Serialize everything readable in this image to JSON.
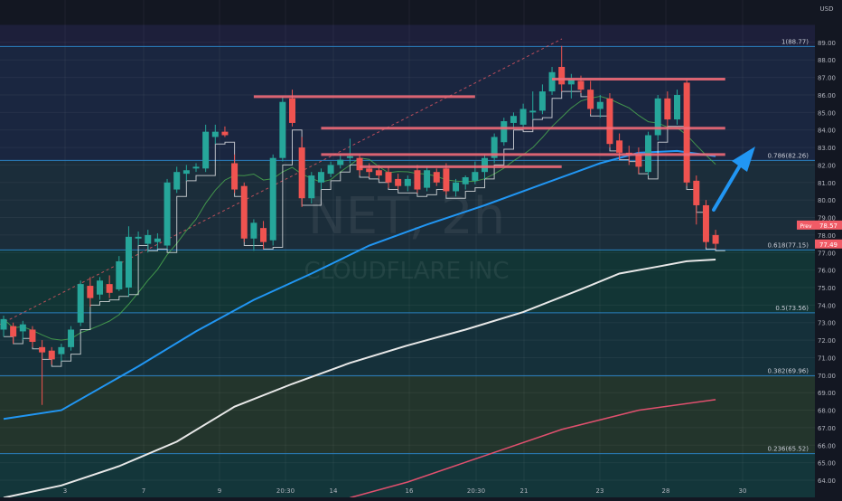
{
  "watermark": {
    "symbol": "NET, 2h",
    "name": "CLOUDFLARE INC"
  },
  "currency": "USD",
  "price_scale": {
    "min": 63,
    "max": 90,
    "labels": [
      64,
      65,
      66,
      67,
      68,
      69,
      70,
      71,
      72,
      73,
      74,
      75,
      76,
      77,
      78,
      79,
      80,
      81,
      82,
      83,
      84,
      85,
      86,
      87,
      88,
      89
    ]
  },
  "time_axis": {
    "labels": [
      "3",
      "7",
      "9",
      "20:30",
      "14",
      "16",
      "20:30",
      "21",
      "23",
      "28",
      "30"
    ]
  },
  "price_tags": {
    "prev": {
      "label": "Prev",
      "value": "78.57"
    },
    "last": {
      "value": "77.49"
    }
  },
  "fib_levels": [
    {
      "ratio": "1",
      "value": "88.77",
      "label": "1(88.77)"
    },
    {
      "ratio": "0.786",
      "value": "82.26",
      "label": "0.786(82.26)"
    },
    {
      "ratio": "0.618",
      "value": "77.15",
      "label": "0.618(77.15)"
    },
    {
      "ratio": "0.5",
      "value": "73.56",
      "label": "0.5(73.56)"
    },
    {
      "ratio": "0.382",
      "value": "69.96",
      "label": "0.382(69.96)"
    },
    {
      "ratio": "0.236",
      "value": "65.52",
      "label": "0.236(65.52)"
    }
  ],
  "colors": {
    "background": "#131722",
    "up": "#26a69a",
    "down": "#ef5350",
    "ma_blue": "#2196f3",
    "ma_white": "#e8e8e8",
    "ma_red": "#e0506e",
    "ma_green": "#4caf50",
    "resistance": "#f06a78",
    "fib_line": "#2a7fbf",
    "arrow": "#2196f3",
    "tag_red": "#f05b66"
  },
  "chart_data": {
    "type": "candlestick",
    "title": "",
    "xlabel": "",
    "ylabel": "",
    "ylim": [
      63,
      90
    ],
    "grid": true,
    "candles": [
      {
        "o": 72.6,
        "h": 73.4,
        "l": 72.2,
        "c": 73.2
      },
      {
        "o": 72.8,
        "h": 73.0,
        "l": 71.8,
        "c": 72.2
      },
      {
        "o": 72.5,
        "h": 73.1,
        "l": 72.0,
        "c": 72.9
      },
      {
        "o": 72.6,
        "h": 72.8,
        "l": 71.6,
        "c": 71.9
      },
      {
        "o": 71.6,
        "h": 72.0,
        "l": 68.3,
        "c": 71.3
      },
      {
        "o": 71.4,
        "h": 71.6,
        "l": 70.6,
        "c": 70.9
      },
      {
        "o": 71.2,
        "h": 71.8,
        "l": 70.8,
        "c": 71.6
      },
      {
        "o": 71.6,
        "h": 72.8,
        "l": 71.4,
        "c": 72.6
      },
      {
        "o": 73.0,
        "h": 75.4,
        "l": 72.8,
        "c": 75.2
      },
      {
        "o": 75.1,
        "h": 75.6,
        "l": 73.9,
        "c": 74.4
      },
      {
        "o": 74.6,
        "h": 75.6,
        "l": 74.3,
        "c": 75.4
      },
      {
        "o": 75.2,
        "h": 75.7,
        "l": 74.4,
        "c": 74.7
      },
      {
        "o": 74.9,
        "h": 76.8,
        "l": 74.8,
        "c": 76.5
      },
      {
        "o": 75.0,
        "h": 78.5,
        "l": 74.5,
        "c": 77.9
      },
      {
        "o": 77.8,
        "h": 78.2,
        "l": 77.4,
        "c": 77.9
      },
      {
        "o": 77.5,
        "h": 78.3,
        "l": 77.0,
        "c": 78.0
      },
      {
        "o": 77.6,
        "h": 78.1,
        "l": 77.2,
        "c": 77.8
      },
      {
        "o": 77.4,
        "h": 81.2,
        "l": 77.2,
        "c": 81.0
      },
      {
        "o": 80.6,
        "h": 81.9,
        "l": 80.4,
        "c": 81.6
      },
      {
        "o": 81.5,
        "h": 82.0,
        "l": 81.1,
        "c": 81.7
      },
      {
        "o": 81.8,
        "h": 82.1,
        "l": 81.6,
        "c": 81.9
      },
      {
        "o": 81.8,
        "h": 84.3,
        "l": 81.6,
        "c": 83.9
      },
      {
        "o": 83.6,
        "h": 84.3,
        "l": 83.2,
        "c": 83.9
      },
      {
        "o": 83.9,
        "h": 84.2,
        "l": 83.6,
        "c": 83.7
      },
      {
        "o": 82.1,
        "h": 82.6,
        "l": 80.4,
        "c": 80.6
      },
      {
        "o": 80.8,
        "h": 81.0,
        "l": 77.6,
        "c": 77.8
      },
      {
        "o": 77.8,
        "h": 78.9,
        "l": 77.1,
        "c": 78.7
      },
      {
        "o": 78.4,
        "h": 78.8,
        "l": 77.2,
        "c": 77.6
      },
      {
        "o": 77.7,
        "h": 82.6,
        "l": 77.4,
        "c": 82.4
      },
      {
        "o": 82.4,
        "h": 85.9,
        "l": 82.2,
        "c": 85.6
      },
      {
        "o": 85.8,
        "h": 86.3,
        "l": 84.2,
        "c": 84.4
      },
      {
        "o": 83.0,
        "h": 83.6,
        "l": 79.6,
        "c": 80.1
      },
      {
        "o": 80.1,
        "h": 81.6,
        "l": 79.8,
        "c": 81.4
      },
      {
        "o": 81.0,
        "h": 81.8,
        "l": 80.6,
        "c": 81.6
      },
      {
        "o": 81.5,
        "h": 82.2,
        "l": 81.3,
        "c": 82.0
      },
      {
        "o": 82.0,
        "h": 82.6,
        "l": 81.8,
        "c": 82.3
      },
      {
        "o": 82.4,
        "h": 83.5,
        "l": 82.1,
        "c": 82.5
      },
      {
        "o": 82.4,
        "h": 82.6,
        "l": 81.4,
        "c": 81.7
      },
      {
        "o": 81.8,
        "h": 82.1,
        "l": 81.3,
        "c": 81.6
      },
      {
        "o": 81.7,
        "h": 82.0,
        "l": 81.2,
        "c": 81.4
      },
      {
        "o": 81.6,
        "h": 81.9,
        "l": 80.7,
        "c": 81.0
      },
      {
        "o": 81.2,
        "h": 81.5,
        "l": 80.6,
        "c": 80.8
      },
      {
        "o": 80.8,
        "h": 81.4,
        "l": 80.5,
        "c": 81.2
      },
      {
        "o": 81.7,
        "h": 82.0,
        "l": 80.4,
        "c": 80.6
      },
      {
        "o": 80.7,
        "h": 81.9,
        "l": 80.5,
        "c": 81.7
      },
      {
        "o": 81.6,
        "h": 81.8,
        "l": 80.8,
        "c": 81.0
      },
      {
        "o": 81.8,
        "h": 82.1,
        "l": 80.3,
        "c": 80.5
      },
      {
        "o": 80.5,
        "h": 81.2,
        "l": 80.2,
        "c": 81.0
      },
      {
        "o": 80.9,
        "h": 81.4,
        "l": 80.6,
        "c": 81.3
      },
      {
        "o": 81.1,
        "h": 82.2,
        "l": 80.9,
        "c": 81.6
      },
      {
        "o": 81.6,
        "h": 82.6,
        "l": 81.2,
        "c": 82.4
      },
      {
        "o": 82.4,
        "h": 83.8,
        "l": 82.1,
        "c": 83.6
      },
      {
        "o": 83.3,
        "h": 84.7,
        "l": 83.1,
        "c": 84.5
      },
      {
        "o": 84.4,
        "h": 85.0,
        "l": 84.0,
        "c": 84.8
      },
      {
        "o": 84.3,
        "h": 85.5,
        "l": 84.1,
        "c": 85.2
      },
      {
        "o": 85.0,
        "h": 86.2,
        "l": 84.6,
        "c": 85.1
      },
      {
        "o": 85.1,
        "h": 86.6,
        "l": 84.9,
        "c": 86.2
      },
      {
        "o": 86.2,
        "h": 87.6,
        "l": 86.0,
        "c": 87.3
      },
      {
        "o": 87.6,
        "h": 88.8,
        "l": 86.2,
        "c": 86.6
      },
      {
        "o": 86.6,
        "h": 87.2,
        "l": 85.8,
        "c": 86.9
      },
      {
        "o": 86.8,
        "h": 87.1,
        "l": 86.1,
        "c": 86.3
      },
      {
        "o": 86.3,
        "h": 86.8,
        "l": 84.9,
        "c": 85.2
      },
      {
        "o": 85.2,
        "h": 86.0,
        "l": 84.7,
        "c": 85.6
      },
      {
        "o": 85.8,
        "h": 86.1,
        "l": 83.0,
        "c": 83.2
      },
      {
        "o": 83.4,
        "h": 83.8,
        "l": 82.3,
        "c": 82.7
      },
      {
        "o": 82.7,
        "h": 83.1,
        "l": 82.0,
        "c": 82.6
      },
      {
        "o": 82.6,
        "h": 83.0,
        "l": 81.5,
        "c": 81.9
      },
      {
        "o": 81.6,
        "h": 83.9,
        "l": 81.4,
        "c": 83.7
      },
      {
        "o": 83.7,
        "h": 86.0,
        "l": 83.4,
        "c": 85.8
      },
      {
        "o": 85.8,
        "h": 86.2,
        "l": 84.2,
        "c": 84.6
      },
      {
        "o": 84.6,
        "h": 86.3,
        "l": 84.3,
        "c": 86.0
      },
      {
        "o": 86.7,
        "h": 86.9,
        "l": 80.8,
        "c": 81.0
      },
      {
        "o": 81.1,
        "h": 81.4,
        "l": 78.6,
        "c": 79.7
      },
      {
        "o": 79.7,
        "h": 80.0,
        "l": 77.3,
        "c": 77.6
      },
      {
        "o": 78.0,
        "h": 78.3,
        "l": 77.2,
        "c": 77.5
      }
    ],
    "moving_averages": [
      {
        "color": "ma_blue",
        "points": [
          [
            0,
            67.5
          ],
          [
            6,
            68.0
          ],
          [
            14,
            70.5
          ],
          [
            20,
            72.5
          ],
          [
            26,
            74.3
          ],
          [
            32,
            75.8
          ],
          [
            38,
            77.4
          ],
          [
            44,
            78.6
          ],
          [
            50,
            79.7
          ],
          [
            56,
            80.9
          ],
          [
            62,
            82.1
          ],
          [
            66,
            82.7
          ],
          [
            70,
            82.8
          ],
          [
            74,
            82.5
          ]
        ]
      },
      {
        "color": "ma_white",
        "points": [
          [
            0,
            63.0
          ],
          [
            6,
            63.7
          ],
          [
            12,
            64.8
          ],
          [
            18,
            66.2
          ],
          [
            24,
            68.2
          ],
          [
            30,
            69.5
          ],
          [
            36,
            70.7
          ],
          [
            42,
            71.7
          ],
          [
            48,
            72.6
          ],
          [
            54,
            73.6
          ],
          [
            60,
            74.9
          ],
          [
            64,
            75.8
          ],
          [
            68,
            76.2
          ],
          [
            71,
            76.5
          ],
          [
            74,
            76.6
          ]
        ]
      },
      {
        "color": "ma_red",
        "points": [
          [
            36,
            63.0
          ],
          [
            42,
            63.9
          ],
          [
            50,
            65.4
          ],
          [
            58,
            66.9
          ],
          [
            66,
            68.0
          ],
          [
            74,
            68.6
          ]
        ]
      }
    ],
    "resistance_lines": [
      {
        "price": 85.9,
        "from": 26,
        "to": 49
      },
      {
        "price": 84.1,
        "from": 33,
        "to": 75
      },
      {
        "price": 82.6,
        "from": 33,
        "to": 75
      },
      {
        "price": 81.9,
        "from": 37,
        "to": 58
      },
      {
        "price": 86.9,
        "from": 57,
        "to": 75
      }
    ]
  }
}
